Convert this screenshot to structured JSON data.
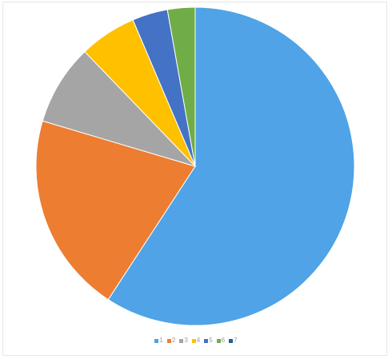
{
  "chart_data": {
    "type": "pie",
    "start_angle_deg": 0,
    "direction": "clockwise",
    "slices": [
      {
        "label": "1",
        "value": 59.2,
        "color": "#4fa3e6"
      },
      {
        "label": "2",
        "value": 20.4,
        "color": "#ed7d31"
      },
      {
        "label": "3",
        "value": 8.2,
        "color": "#a5a5a5"
      },
      {
        "label": "4",
        "value": 5.8,
        "color": "#ffc000"
      },
      {
        "label": "5",
        "value": 3.6,
        "color": "#4472c4"
      },
      {
        "label": "6",
        "value": 2.8,
        "color": "#70ad47"
      },
      {
        "label": "7",
        "value": 0.0,
        "color": "#255e91"
      }
    ],
    "legend_placement": "bottom",
    "title": ""
  }
}
